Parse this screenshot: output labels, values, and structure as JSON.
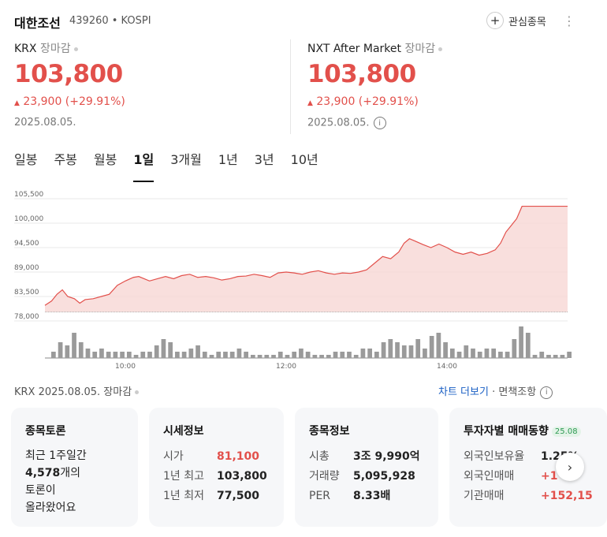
{
  "header": {
    "title": "대한조선",
    "code": "439260 • KOSPI",
    "watch_label": "관심종목",
    "more_icon": "⋮"
  },
  "krx": {
    "market": "KRX",
    "status": "장마감",
    "price": "103,800",
    "change": "23,900 (+29.91%)",
    "date": "2025.08.05."
  },
  "nxt": {
    "market": "NXT After Market",
    "status": "장마감",
    "price": "103,800",
    "change": "23,900 (+29.91%)",
    "date": "2025.08.05.",
    "info_icon": "i"
  },
  "tabs": [
    {
      "label": "일봉",
      "active": false
    },
    {
      "label": "주봉",
      "active": false
    },
    {
      "label": "월봉",
      "active": false
    },
    {
      "label": "1일",
      "active": true
    },
    {
      "label": "3개월",
      "active": false
    },
    {
      "label": "1년",
      "active": false
    },
    {
      "label": "3년",
      "active": false
    },
    {
      "label": "10년",
      "active": false
    }
  ],
  "chart_data": {
    "type": "area",
    "y_ticks": [
      "105,500",
      "100,000",
      "94,500",
      "89,000",
      "83,500",
      "78,000"
    ],
    "y_tick_values": [
      105500,
      100000,
      94500,
      89000,
      83500,
      78000
    ],
    "ylim": [
      78000,
      105500
    ],
    "x_ticks": [
      "10:00",
      "12:00",
      "14:00"
    ],
    "x_tick_values": [
      600,
      720,
      840
    ],
    "xlim": [
      540,
      930
    ],
    "series": [
      {
        "x": [
          540,
          545,
          549,
          553,
          557,
          562,
          566,
          570,
          576,
          582,
          588,
          594,
          600,
          606,
          610,
          614,
          618,
          624,
          630,
          636,
          642,
          648,
          654,
          660,
          666,
          672,
          678,
          684,
          690,
          696,
          702,
          708,
          714,
          720,
          726,
          732,
          738,
          744,
          750,
          756,
          762,
          768,
          774,
          780,
          786,
          792,
          798,
          804,
          808,
          812,
          816,
          822,
          828,
          834,
          840,
          846,
          852,
          858,
          864,
          870,
          876,
          880,
          884,
          888,
          892,
          896,
          900,
          930
        ],
        "values": [
          81500,
          82500,
          84000,
          85000,
          83500,
          83000,
          82000,
          82800,
          83000,
          83500,
          84000,
          86000,
          87000,
          87800,
          88000,
          87500,
          87000,
          87500,
          88000,
          87500,
          88200,
          88500,
          87800,
          88000,
          87700,
          87200,
          87500,
          88000,
          88100,
          88500,
          88200,
          87800,
          88800,
          89000,
          88800,
          88500,
          89000,
          89300,
          88800,
          88500,
          88800,
          88700,
          89000,
          89500,
          91000,
          92500,
          92000,
          93500,
          95500,
          96500,
          96000,
          95200,
          94500,
          95300,
          94500,
          93500,
          93000,
          93500,
          92800,
          93200,
          94000,
          95500,
          98000,
          99500,
          101000,
          103800,
          103800,
          103800
        ]
      }
    ],
    "volume": [
      2,
      5,
      4,
      8,
      5,
      3,
      2,
      3,
      2,
      2,
      2,
      2,
      1,
      2,
      2,
      4,
      6,
      5,
      2,
      2,
      3,
      4,
      2,
      1,
      2,
      2,
      2,
      3,
      2,
      1,
      1,
      1,
      1,
      2,
      1,
      2,
      3,
      2,
      1,
      1,
      1,
      2,
      2,
      2,
      1,
      3,
      3,
      2,
      5,
      6,
      5,
      4,
      4,
      6,
      3,
      7,
      8,
      5,
      3,
      2,
      4,
      3,
      2,
      3,
      3,
      2,
      2,
      6,
      10,
      8,
      1,
      2,
      1,
      1,
      1,
      2
    ]
  },
  "footer": {
    "left": "KRX  2025.08.05. 장마감",
    "chart_more": "차트 더보기",
    "sep": "·",
    "disclaimer": "면책조항",
    "info_icon": "i"
  },
  "cards": {
    "discussion": {
      "title": "종목토론",
      "line1": "최근 1주일간",
      "count": "4,578",
      "count_suffix": "개의",
      "line3": "토론이",
      "line4": "올라왔어요"
    },
    "quote": {
      "title": "시세정보",
      "rows": [
        {
          "label": "시가",
          "value": "81,100"
        },
        {
          "label": "1년 최고",
          "value": "103,800"
        },
        {
          "label": "1년 최저",
          "value": "77,500"
        }
      ]
    },
    "stock": {
      "title": "종목정보",
      "rows": [
        {
          "label": "시총",
          "value": "3조 9,990억"
        },
        {
          "label": "거래량",
          "value": "5,095,928"
        },
        {
          "label": "PER",
          "value": "8.33배"
        }
      ]
    },
    "investor": {
      "title": "투자자별 매매동향",
      "badge": "25.08",
      "rows": [
        {
          "label": "외국인보유율",
          "value": "1.25%"
        },
        {
          "label": "외국인매매",
          "value": "+1"
        },
        {
          "label": "기관매매",
          "value": "+152,15"
        }
      ]
    }
  },
  "colors": {
    "up": "#e2504b",
    "link": "#1a5fc4",
    "area_fill": "#f8d7d5",
    "area_line": "#e2504b",
    "volume": "#9a9a9a"
  },
  "next_icon": "›"
}
